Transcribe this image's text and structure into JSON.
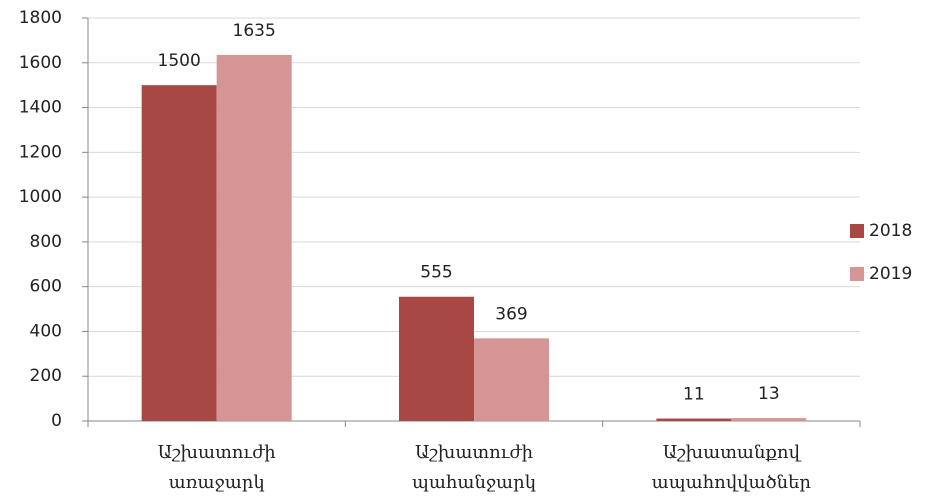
{
  "chart_data": {
    "type": "bar",
    "categories": [
      "Աշխատուժի առաջարկ",
      "Աշխատուժի պահանջարկ",
      "Աշխատանքով ապահովվածներ"
    ],
    "series": [
      {
        "name": "2018",
        "color": "#a84845",
        "values": [
          1500,
          555,
          11
        ]
      },
      {
        "name": "2019",
        "color": "#d49594",
        "values": [
          1635,
          369,
          13
        ]
      }
    ],
    "ylim": [
      0,
      1800
    ],
    "yticks": [
      0,
      200,
      400,
      600,
      800,
      1000,
      1200,
      1400,
      1600,
      1800
    ],
    "grid": true,
    "legend": "right"
  }
}
